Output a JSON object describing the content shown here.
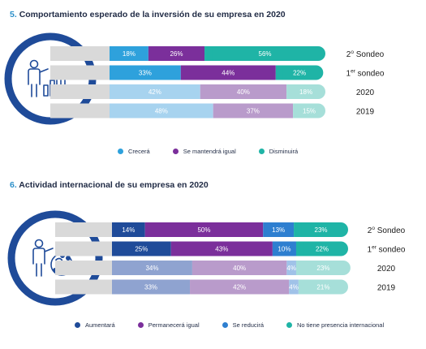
{
  "chart_data": [
    {
      "type": "bar",
      "orientation": "horizontal",
      "stacked": "100%",
      "title_number": "5.",
      "title": "Comportamiento esperado de la inversión de su empresa en 2020",
      "categories": [
        "2º Sondeo",
        "1er sondeo",
        "2020",
        "2019"
      ],
      "category_labels": [
        {
          "main": "2",
          "sup": "o",
          "rest": " Sondeo"
        },
        {
          "main": "1",
          "sup": "er",
          "rest": " sondeo"
        },
        {
          "main": "2020",
          "sup": "",
          "rest": ""
        },
        {
          "main": "2019",
          "sup": "",
          "rest": ""
        }
      ],
      "series": [
        {
          "name": "Crecerá",
          "values": [
            18,
            33,
            42,
            48
          ],
          "colors": [
            "#2ea1dc",
            "#2ea1dc",
            "#a7d3ef",
            "#a7d3ef"
          ]
        },
        {
          "name": "Se mantendrá igual",
          "values": [
            26,
            44,
            40,
            37
          ],
          "colors": [
            "#7b2f9b",
            "#7b2f9b",
            "#b99bcb",
            "#b99bcb"
          ]
        },
        {
          "name": "Disminuirá",
          "values": [
            56,
            22,
            18,
            15
          ],
          "colors": [
            "#1fb4a6",
            "#1fb4a6",
            "#a6dfd9",
            "#a6dfd9"
          ]
        }
      ],
      "value_format": "{v}%",
      "legend_colors": [
        "#2ea1dc",
        "#7b2f9b",
        "#1fb4a6"
      ],
      "legend_position": "bottom",
      "icon": "investor-growth-icon"
    },
    {
      "type": "bar",
      "orientation": "horizontal",
      "stacked": "100%",
      "title_number": "6.",
      "title": "Actividad internacional de su empresa en 2020",
      "categories": [
        "2º Sondeo",
        "1er sondeo",
        "2020",
        "2019"
      ],
      "category_labels": [
        {
          "main": "2",
          "sup": "o",
          "rest": " Sondeo"
        },
        {
          "main": "1",
          "sup": "er",
          "rest": " sondeo"
        },
        {
          "main": "2020",
          "sup": "",
          "rest": ""
        },
        {
          "main": "2019",
          "sup": "",
          "rest": ""
        }
      ],
      "series": [
        {
          "name": "Aumentará",
          "values": [
            14,
            25,
            34,
            33
          ],
          "colors": [
            "#1f4b99",
            "#1f4b99",
            "#8fa3d0",
            "#8fa3d0"
          ]
        },
        {
          "name": "Permanecerá igual",
          "values": [
            50,
            43,
            40,
            42
          ],
          "colors": [
            "#7b2f9b",
            "#7b2f9b",
            "#b99bcb",
            "#b99bcb"
          ]
        },
        {
          "name": "Se reducirá",
          "values": [
            13,
            10,
            4,
            4
          ],
          "colors": [
            "#2e7fd0",
            "#2e7fd0",
            "#a0c2e8",
            "#a0c2e8"
          ]
        },
        {
          "name": "No tiene presencia internacional",
          "values": [
            23,
            22,
            23,
            21
          ],
          "colors": [
            "#1fb4a6",
            "#1fb4a6",
            "#a6dfd9",
            "#a6dfd9"
          ]
        }
      ],
      "value_format": "{v}%",
      "legend_colors": [
        "#1f4b99",
        "#7b2f9b",
        "#2e7fd0",
        "#1fb4a6"
      ],
      "legend_position": "bottom",
      "icon": "investor-global-icon"
    }
  ],
  "colors": {
    "circle_ring": "#1f4b99",
    "grey_backing": "#d9d9d9",
    "title_number": "#2b8fc9",
    "title_text": "#1f2a44"
  }
}
